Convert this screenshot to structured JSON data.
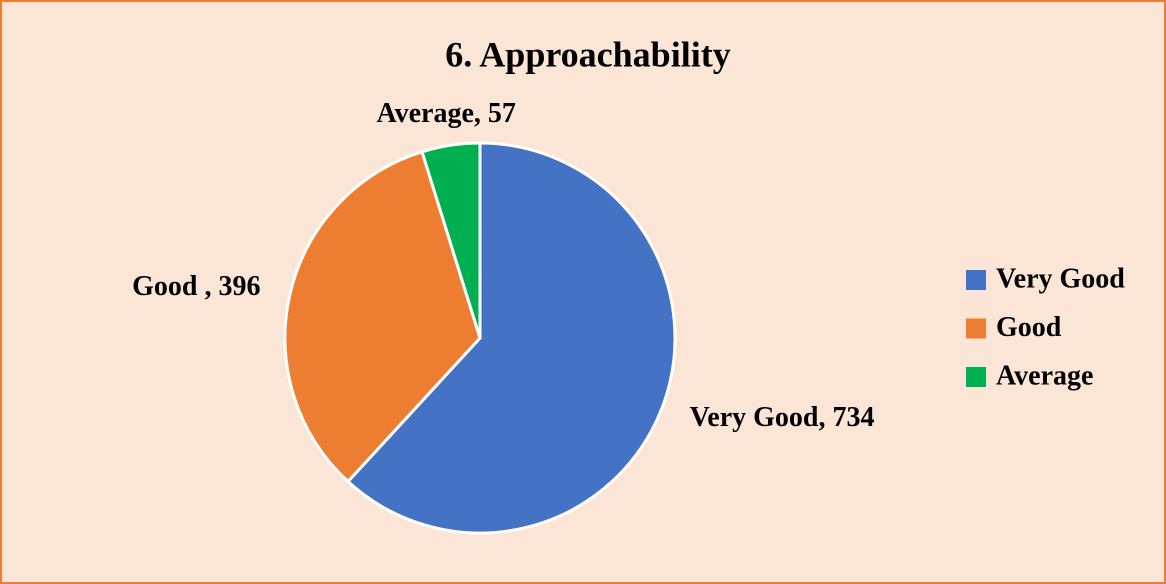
{
  "chart_data": {
    "type": "pie",
    "title": "6. Approachability",
    "categories": [
      "Very Good",
      "Good",
      "Average"
    ],
    "values": [
      734,
      396,
      57
    ],
    "value_labels": [
      "Very Good, 734",
      "Good , 396",
      "Average, 57"
    ],
    "colors": [
      "#4472c4",
      "#ed7d31",
      "#00b050"
    ],
    "legend": "right"
  }
}
